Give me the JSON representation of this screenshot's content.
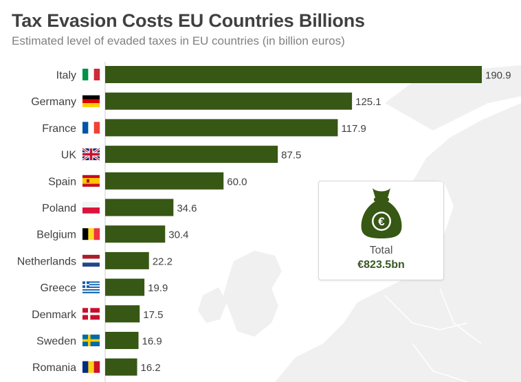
{
  "title": "Tax Evasion Costs EU Countries Billions",
  "subtitle": "Estimated level of evaded taxes in EU countries (in billion euros)",
  "colors": {
    "bar": "#375714",
    "title": "#404040",
    "accent": "#385723"
  },
  "chart_data": {
    "type": "bar",
    "orientation": "horizontal",
    "categories": [
      "Italy",
      "Germany",
      "France",
      "UK",
      "Spain",
      "Poland",
      "Belgium",
      "Netherlands",
      "Greece",
      "Denmark",
      "Sweden",
      "Romania"
    ],
    "flag_icons": [
      "italy-flag-icon",
      "germany-flag-icon",
      "france-flag-icon",
      "uk-flag-icon",
      "spain-flag-icon",
      "poland-flag-icon",
      "belgium-flag-icon",
      "netherlands-flag-icon",
      "greece-flag-icon",
      "denmark-flag-icon",
      "sweden-flag-icon",
      "romania-flag-icon"
    ],
    "values": [
      190.9,
      125.1,
      117.9,
      87.5,
      60.0,
      34.6,
      30.4,
      22.2,
      19.9,
      17.5,
      16.9,
      16.2
    ],
    "value_labels": [
      "190.9",
      "125.1",
      "117.9",
      "87.5",
      "60.0",
      "34.6",
      "30.4",
      "22.2",
      "19.9",
      "17.5",
      "16.9",
      "16.2"
    ],
    "xlim": [
      0,
      190.9
    ],
    "grid": false,
    "legend": "none"
  },
  "total": {
    "label": "Total",
    "value": "€823.5bn",
    "icon": "money-bag-euro-icon",
    "symbol": "€"
  }
}
